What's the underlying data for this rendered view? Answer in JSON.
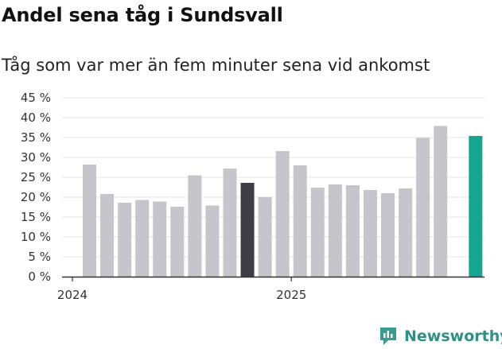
{
  "header": {
    "title": "Andel sena tåg i Sundsvall",
    "subtitle": "Tåg som var mer än fem minuter sena vid ankomst"
  },
  "brand": {
    "name": "Newsworthy"
  },
  "colors": {
    "bar_default": "#c6c5cc",
    "bar_highlight_dark": "#3d3c47",
    "bar_highlight_accent": "#12a693",
    "gridline": "#e3e3e3",
    "axis": "#333333",
    "brand": "#2f8f86"
  },
  "chart_data": {
    "type": "bar",
    "title": "Andel sena tåg i Sundsvall",
    "subtitle": "Tåg som var mer än fem minuter sena vid ankomst",
    "xlabel": "",
    "ylabel": "",
    "ylim": [
      0,
      45
    ],
    "yticks": [
      0,
      5,
      10,
      15,
      20,
      25,
      30,
      35,
      40,
      45
    ],
    "ytick_labels": [
      "0 %",
      "5 %",
      "10 %",
      "15 %",
      "20 %",
      "25 %",
      "30 %",
      "35 %",
      "40 %",
      "45 %"
    ],
    "grid": true,
    "categories": [
      "2024-01",
      "2024-02",
      "2024-03",
      "2024-04",
      "2024-05",
      "2024-06",
      "2024-07",
      "2024-08",
      "2024-09",
      "2024-10",
      "2024-11",
      "2024-12",
      "2025-01",
      "2025-02",
      "2025-03",
      "2025-04",
      "2025-05",
      "2025-06",
      "2025-07",
      "2025-08",
      "2025-09",
      "2025-10",
      "2025-11"
    ],
    "values": [
      28.2,
      20.8,
      18.6,
      19.3,
      18.9,
      17.6,
      25.5,
      17.9,
      27.2,
      23.6,
      20.0,
      31.6,
      28.0,
      22.4,
      23.2,
      23.0,
      21.8,
      21.0,
      22.2,
      34.9,
      37.9,
      0,
      35.4
    ],
    "highlight": {
      "2024-10": "dark",
      "2025-11": "accent"
    },
    "x_tick_labels": [
      {
        "category_index": 0,
        "label": "2024"
      },
      {
        "category_index": 12,
        "label": "2025"
      }
    ]
  }
}
